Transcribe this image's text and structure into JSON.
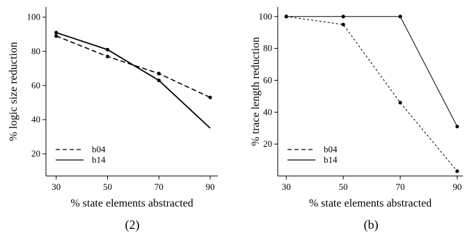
{
  "chart_data": [
    {
      "type": "line",
      "caption": "(2)",
      "xlabel": "% state elements abstracted",
      "ylabel": "% logic size reduction",
      "x": [
        30,
        50,
        70,
        90
      ],
      "xticks": [
        "30",
        "50",
        "70",
        "90"
      ],
      "yticks": [
        "20",
        "40",
        "60",
        "80",
        "100"
      ],
      "ylim": [
        7,
        106
      ],
      "xlim": [
        26,
        93
      ],
      "series": [
        {
          "name": "b04",
          "style": "dashed",
          "values": [
            89,
            77,
            67,
            53
          ],
          "markers": true
        },
        {
          "name": "b14",
          "style": "solid",
          "values": [
            91,
            81,
            63,
            35
          ],
          "markers": [
            true,
            true,
            true,
            false
          ]
        }
      ],
      "legend": "bottom-left",
      "grid": false
    },
    {
      "type": "line",
      "caption": "(b)",
      "xlabel": "% state elements abstracted",
      "ylabel": "% trace length reduction",
      "x": [
        30,
        50,
        70,
        90
      ],
      "xticks": [
        "30",
        "50",
        "70",
        "90"
      ],
      "yticks": [
        "20",
        "40",
        "60",
        "80",
        "100"
      ],
      "ylim": [
        0,
        106
      ],
      "xlim": [
        27,
        92
      ],
      "series": [
        {
          "name": "b04",
          "style": "dashed",
          "values": [
            100,
            95,
            46,
            3
          ],
          "markers": true
        },
        {
          "name": "b14",
          "style": "solid",
          "values": [
            100,
            100,
            100,
            31
          ],
          "markers": true
        }
      ],
      "legend": "bottom-left",
      "grid": false
    }
  ]
}
